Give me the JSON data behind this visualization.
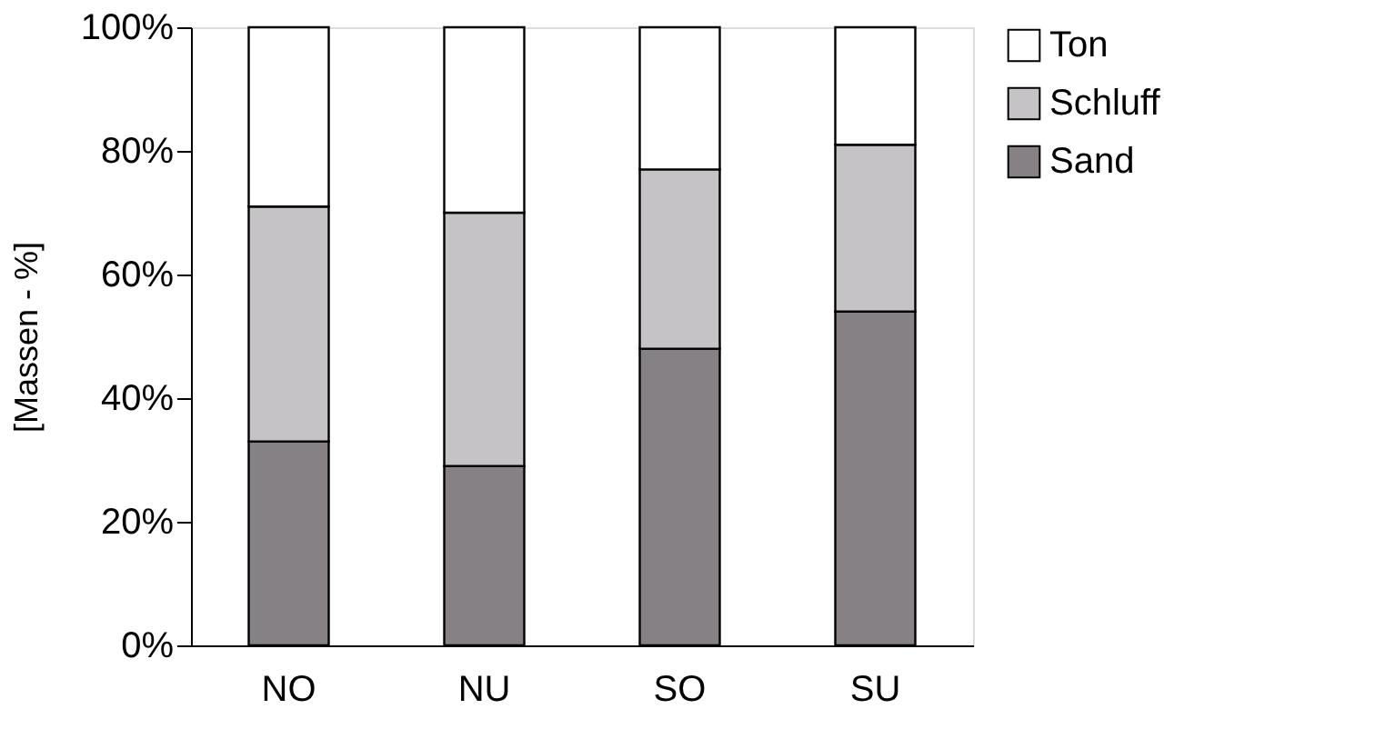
{
  "chart_data": {
    "type": "bar",
    "stacked": true,
    "ylabel": "[Massen - %]",
    "categories": [
      "NO",
      "NU",
      "SO",
      "SU"
    ],
    "series": [
      {
        "name": "Sand",
        "color": "#858185",
        "values": [
          33,
          29,
          48,
          54
        ]
      },
      {
        "name": "Schluff",
        "color": "#c6c3c6",
        "values": [
          38,
          41,
          29,
          27
        ]
      },
      {
        "name": "Ton",
        "color": "#ffffff",
        "values": [
          29,
          30,
          23,
          19
        ]
      }
    ],
    "ylim": [
      0,
      100
    ],
    "yticks": [
      {
        "value": 0,
        "label": "0%"
      },
      {
        "value": 20,
        "label": "20%"
      },
      {
        "value": 40,
        "label": "40%"
      },
      {
        "value": 60,
        "label": "60%"
      },
      {
        "value": 80,
        "label": "80%"
      },
      {
        "value": 100,
        "label": "100%"
      }
    ],
    "grid": false,
    "legend": "right"
  }
}
